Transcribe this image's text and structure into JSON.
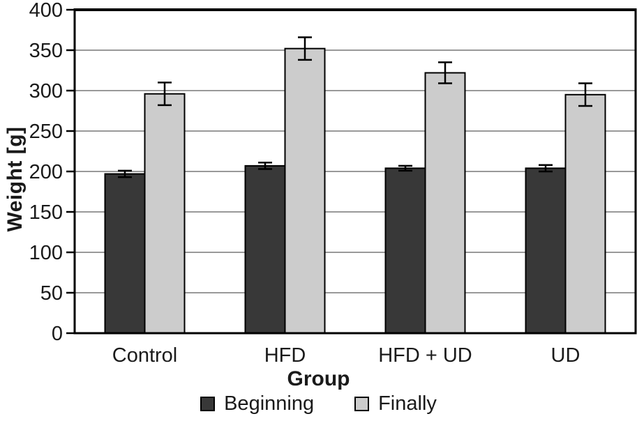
{
  "chart_data": {
    "type": "bar",
    "title": "",
    "xlabel": "Group",
    "ylabel": "Weight [g]",
    "categories": [
      "Control",
      "HFD",
      "HFD + UD",
      "UD"
    ],
    "series": [
      {
        "name": "Beginning",
        "color": "#383838",
        "values": [
          197,
          207,
          204,
          204
        ],
        "errors": [
          4,
          4,
          3,
          4
        ]
      },
      {
        "name": "Finally",
        "color": "#cccccc",
        "values": [
          296,
          352,
          322,
          295
        ],
        "errors": [
          14,
          14,
          13,
          14
        ]
      }
    ],
    "ylim": [
      0,
      400
    ],
    "yticks": [
      0,
      50,
      100,
      150,
      200,
      250,
      300,
      350,
      400
    ],
    "grid": true,
    "legend_position": "bottom",
    "gridline_color": "#999999",
    "axis_color": "#000000"
  }
}
